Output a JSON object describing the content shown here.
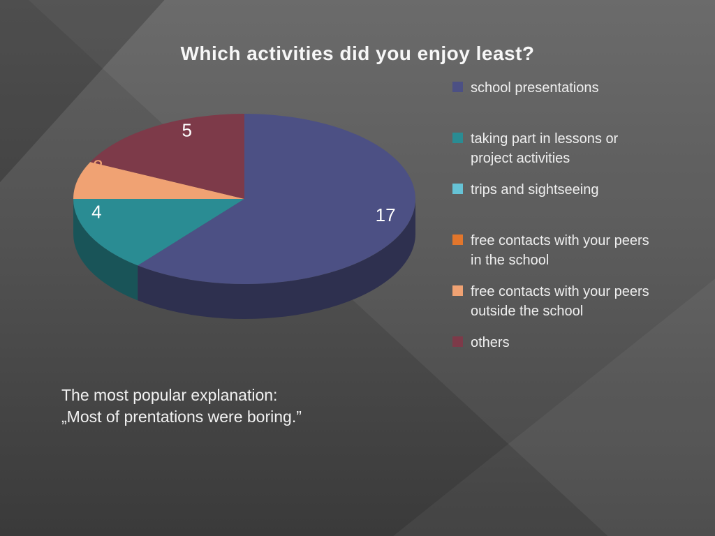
{
  "slide": {
    "title": "Which activities did you enjoy least?",
    "note": {
      "line1": "The most popular explanation:",
      "line2": "„Most of prentations were boring.”"
    }
  },
  "chart_data": {
    "type": "pie",
    "effect": "3d",
    "title": "Which activities did you enjoy least?",
    "legend_position": "right",
    "labels": [
      "school presentations",
      "taking part in lessons or project activities",
      "trips and sightseeing",
      "free contacts with your peers in the school",
      "free contacts with your peers outside the school",
      "others"
    ],
    "values": [
      17,
      4,
      0,
      0,
      2,
      5
    ],
    "colors": [
      "#4c5084",
      "#2a8c93",
      "#66c3d6",
      "#e2762c",
      "#f0a273",
      "#7d3a49"
    ],
    "value_labels": [
      {
        "text": "17",
        "angle": 104,
        "r": 0.85,
        "color": "#ffffff"
      },
      {
        "text": "4",
        "angle": 259,
        "r": 0.88,
        "color": "#ffffff"
      },
      {
        "text": "2",
        "angle": 293,
        "r": 0.93,
        "color": "#f0a273"
      },
      {
        "text": "5",
        "angle": 337,
        "r": 0.86,
        "color": "#ffffff"
      }
    ]
  }
}
